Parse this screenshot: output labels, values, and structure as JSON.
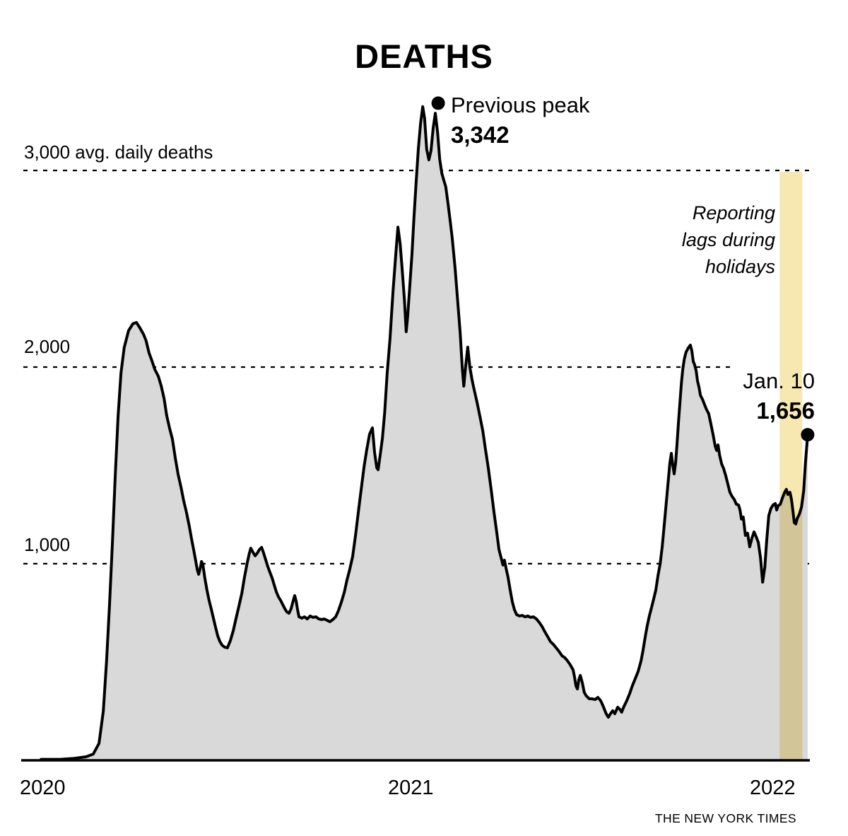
{
  "title": "DEATHS",
  "credit": "THE NEW YORK TIMES",
  "annotations": {
    "peak_label": "Previous peak",
    "peak_value": "3,342",
    "holiday_note_lines": [
      "Reporting",
      "lags during",
      "holidays"
    ],
    "latest_label": "Jan. 10",
    "latest_value": "1,656"
  },
  "axis_y": {
    "labels": [
      {
        "value": 3000,
        "text": "3,000 avg. daily deaths"
      },
      {
        "value": 2000,
        "text": "2,000"
      },
      {
        "value": 1000,
        "text": "1,000"
      }
    ]
  },
  "axis_x": {
    "ticks": [
      {
        "t": 0,
        "text": "2020"
      },
      {
        "t": 1,
        "text": "2021"
      },
      {
        "t": 2,
        "text": "2022"
      }
    ]
  },
  "colors": {
    "area_fill": "#d9d9d9",
    "line": "#000000",
    "grid": "#000000",
    "holiday_band": "#f7e8b2",
    "background": "#ffffff"
  },
  "chart_data": {
    "type": "area",
    "title": "DEATHS",
    "ylabel": "avg. daily deaths",
    "ylim": [
      0,
      3450
    ],
    "x_domain_years": [
      2019.96,
      2022.1
    ],
    "grid": "horizontal dashed at 1000, 2000, 3000",
    "legend": "none",
    "y_gridlines": [
      1000,
      2000,
      3000
    ],
    "highlight_band": {
      "t_start": 2.018,
      "t_end": 2.081,
      "note": "Reporting lags during holidays"
    },
    "markers": [
      {
        "t": 1.069,
        "value": 3342,
        "label": "Previous peak 3,342"
      },
      {
        "t": 2.096,
        "value": 1656,
        "label": "Jan. 10 1,656"
      }
    ],
    "series_units": "t = years since Jan 2020 (approx), v = 7-day avg daily deaths",
    "series": [
      [
        -0.035,
        5
      ],
      [
        0.018,
        5
      ],
      [
        0.057,
        10
      ],
      [
        0.09,
        18
      ],
      [
        0.11,
        32
      ],
      [
        0.126,
        86
      ],
      [
        0.138,
        250
      ],
      [
        0.147,
        505
      ],
      [
        0.155,
        785
      ],
      [
        0.163,
        1100
      ],
      [
        0.171,
        1440
      ],
      [
        0.179,
        1750
      ],
      [
        0.187,
        1970
      ],
      [
        0.196,
        2100
      ],
      [
        0.208,
        2185
      ],
      [
        0.22,
        2220
      ],
      [
        0.23,
        2227
      ],
      [
        0.24,
        2198
      ],
      [
        0.25,
        2165
      ],
      [
        0.257,
        2133
      ],
      [
        0.265,
        2072
      ],
      [
        0.273,
        2032
      ],
      [
        0.281,
        1989
      ],
      [
        0.291,
        1953
      ],
      [
        0.299,
        1903
      ],
      [
        0.307,
        1838
      ],
      [
        0.314,
        1755
      ],
      [
        0.322,
        1690
      ],
      [
        0.33,
        1633
      ],
      [
        0.338,
        1539
      ],
      [
        0.346,
        1453
      ],
      [
        0.354,
        1388
      ],
      [
        0.361,
        1324
      ],
      [
        0.369,
        1262
      ],
      [
        0.377,
        1190
      ],
      [
        0.383,
        1129
      ],
      [
        0.389,
        1072
      ],
      [
        0.395,
        1011
      ],
      [
        0.399,
        971
      ],
      [
        0.403,
        946
      ],
      [
        0.407,
        975
      ],
      [
        0.411,
        1011
      ],
      [
        0.415,
        993
      ],
      [
        0.42,
        928
      ],
      [
        0.426,
        867
      ],
      [
        0.432,
        813
      ],
      [
        0.438,
        770
      ],
      [
        0.444,
        723
      ],
      [
        0.45,
        676
      ],
      [
        0.456,
        633
      ],
      [
        0.462,
        604
      ],
      [
        0.468,
        586
      ],
      [
        0.475,
        576
      ],
      [
        0.483,
        572
      ],
      [
        0.491,
        608
      ],
      [
        0.499,
        658
      ],
      [
        0.507,
        723
      ],
      [
        0.515,
        784
      ],
      [
        0.523,
        849
      ],
      [
        0.53,
        928
      ],
      [
        0.538,
        1004
      ],
      [
        0.544,
        1054
      ],
      [
        0.548,
        1079
      ],
      [
        0.554,
        1058
      ],
      [
        0.56,
        1040
      ],
      [
        0.566,
        1054
      ],
      [
        0.572,
        1072
      ],
      [
        0.578,
        1083
      ],
      [
        0.583,
        1058
      ],
      [
        0.589,
        1022
      ],
      [
        0.595,
        986
      ],
      [
        0.601,
        957
      ],
      [
        0.607,
        928
      ],
      [
        0.613,
        892
      ],
      [
        0.619,
        856
      ],
      [
        0.625,
        831
      ],
      [
        0.631,
        813
      ],
      [
        0.637,
        791
      ],
      [
        0.642,
        773
      ],
      [
        0.648,
        755
      ],
      [
        0.654,
        748
      ],
      [
        0.66,
        770
      ],
      [
        0.666,
        813
      ],
      [
        0.67,
        838
      ],
      [
        0.674,
        809
      ],
      [
        0.678,
        766
      ],
      [
        0.682,
        730
      ],
      [
        0.69,
        723
      ],
      [
        0.697,
        730
      ],
      [
        0.705,
        719
      ],
      [
        0.713,
        734
      ],
      [
        0.721,
        727
      ],
      [
        0.729,
        730
      ],
      [
        0.737,
        719
      ],
      [
        0.745,
        716
      ],
      [
        0.752,
        719
      ],
      [
        0.76,
        712
      ],
      [
        0.768,
        705
      ],
      [
        0.776,
        716
      ],
      [
        0.784,
        730
      ],
      [
        0.792,
        763
      ],
      [
        0.8,
        806
      ],
      [
        0.808,
        856
      ],
      [
        0.815,
        914
      ],
      [
        0.823,
        971
      ],
      [
        0.831,
        1036
      ],
      [
        0.839,
        1144
      ],
      [
        0.847,
        1263
      ],
      [
        0.855,
        1381
      ],
      [
        0.863,
        1496
      ],
      [
        0.87,
        1576
      ],
      [
        0.878,
        1658
      ],
      [
        0.886,
        1691
      ],
      [
        0.892,
        1568
      ],
      [
        0.898,
        1489
      ],
      [
        0.902,
        1478
      ],
      [
        0.908,
        1558
      ],
      [
        0.914,
        1640
      ],
      [
        0.92,
        1766
      ],
      [
        0.927,
        1964
      ],
      [
        0.935,
        2144
      ],
      [
        0.943,
        2377
      ],
      [
        0.951,
        2575
      ],
      [
        0.957,
        2712
      ],
      [
        0.963,
        2629
      ],
      [
        0.969,
        2493
      ],
      [
        0.975,
        2342
      ],
      [
        0.98,
        2180
      ],
      [
        0.984,
        2259
      ],
      [
        0.99,
        2413
      ],
      [
        0.996,
        2575
      ],
      [
        1.002,
        2773
      ],
      [
        1.008,
        2953
      ],
      [
        1.014,
        3115
      ],
      [
        1.02,
        3241
      ],
      [
        1.026,
        3324
      ],
      [
        1.031,
        3266
      ],
      [
        1.037,
        3108
      ],
      [
        1.043,
        3054
      ],
      [
        1.049,
        3101
      ],
      [
        1.055,
        3216
      ],
      [
        1.061,
        3291
      ],
      [
        1.067,
        3198
      ],
      [
        1.073,
        3058
      ],
      [
        1.079,
        2986
      ],
      [
        1.084,
        2953
      ],
      [
        1.09,
        2917
      ],
      [
        1.096,
        2834
      ],
      [
        1.102,
        2748
      ],
      [
        1.108,
        2654
      ],
      [
        1.116,
        2503
      ],
      [
        1.124,
        2316
      ],
      [
        1.13,
        2173
      ],
      [
        1.136,
        1993
      ],
      [
        1.14,
        1903
      ],
      [
        1.145,
        2000
      ],
      [
        1.151,
        2101
      ],
      [
        1.157,
        2000
      ],
      [
        1.163,
        1935
      ],
      [
        1.169,
        1885
      ],
      [
        1.177,
        1820
      ],
      [
        1.185,
        1748
      ],
      [
        1.193,
        1676
      ],
      [
        1.2,
        1586
      ],
      [
        1.208,
        1489
      ],
      [
        1.216,
        1381
      ],
      [
        1.224,
        1263
      ],
      [
        1.232,
        1155
      ],
      [
        1.238,
        1072
      ],
      [
        1.244,
        1029
      ],
      [
        1.249,
        993
      ],
      [
        1.253,
        1018
      ],
      [
        1.257,
        982
      ],
      [
        1.263,
        932
      ],
      [
        1.269,
        867
      ],
      [
        1.275,
        806
      ],
      [
        1.281,
        766
      ],
      [
        1.287,
        741
      ],
      [
        1.295,
        734
      ],
      [
        1.303,
        737
      ],
      [
        1.31,
        730
      ],
      [
        1.318,
        734
      ],
      [
        1.326,
        727
      ],
      [
        1.334,
        730
      ],
      [
        1.342,
        719
      ],
      [
        1.35,
        701
      ],
      [
        1.358,
        680
      ],
      [
        1.365,
        655
      ],
      [
        1.373,
        630
      ],
      [
        1.381,
        604
      ],
      [
        1.389,
        590
      ],
      [
        1.397,
        572
      ],
      [
        1.405,
        554
      ],
      [
        1.413,
        532
      ],
      [
        1.421,
        522
      ],
      [
        1.428,
        507
      ],
      [
        1.436,
        486
      ],
      [
        1.444,
        460
      ],
      [
        1.448,
        424
      ],
      [
        1.452,
        378
      ],
      [
        1.456,
        363
      ],
      [
        1.46,
        410
      ],
      [
        1.464,
        432
      ],
      [
        1.47,
        392
      ],
      [
        1.475,
        345
      ],
      [
        1.481,
        327
      ],
      [
        1.489,
        313
      ],
      [
        1.497,
        313
      ],
      [
        1.505,
        309
      ],
      [
        1.513,
        320
      ],
      [
        1.521,
        302
      ],
      [
        1.528,
        273
      ],
      [
        1.536,
        237
      ],
      [
        1.542,
        219
      ],
      [
        1.548,
        237
      ],
      [
        1.554,
        252
      ],
      [
        1.56,
        237
      ],
      [
        1.568,
        270
      ],
      [
        1.574,
        259
      ],
      [
        1.579,
        245
      ],
      [
        1.585,
        273
      ],
      [
        1.593,
        302
      ],
      [
        1.601,
        338
      ],
      [
        1.609,
        381
      ],
      [
        1.617,
        417
      ],
      [
        1.625,
        453
      ],
      [
        1.633,
        507
      ],
      [
        1.638,
        554
      ],
      [
        1.644,
        622
      ],
      [
        1.65,
        683
      ],
      [
        1.656,
        734
      ],
      [
        1.662,
        777
      ],
      [
        1.668,
        820
      ],
      [
        1.674,
        867
      ],
      [
        1.68,
        939
      ],
      [
        1.686,
        1000
      ],
      [
        1.692,
        1090
      ],
      [
        1.697,
        1190
      ],
      [
        1.703,
        1309
      ],
      [
        1.709,
        1432
      ],
      [
        1.713,
        1511
      ],
      [
        1.717,
        1561
      ],
      [
        1.721,
        1503
      ],
      [
        1.725,
        1457
      ],
      [
        1.729,
        1514
      ],
      [
        1.733,
        1611
      ],
      [
        1.737,
        1719
      ],
      [
        1.741,
        1820
      ],
      [
        1.745,
        1917
      ],
      [
        1.749,
        1989
      ],
      [
        1.753,
        2040
      ],
      [
        1.758,
        2076
      ],
      [
        1.764,
        2097
      ],
      [
        1.77,
        2112
      ],
      [
        1.774,
        2083
      ],
      [
        1.778,
        2029
      ],
      [
        1.782,
        2011
      ],
      [
        1.786,
        1982
      ],
      [
        1.79,
        1928
      ],
      [
        1.794,
        1899
      ],
      [
        1.798,
        1856
      ],
      [
        1.804,
        1835
      ],
      [
        1.81,
        1806
      ],
      [
        1.815,
        1784
      ],
      [
        1.821,
        1763
      ],
      [
        1.827,
        1712
      ],
      [
        1.833,
        1658
      ],
      [
        1.839,
        1597
      ],
      [
        1.843,
        1576
      ],
      [
        1.847,
        1604
      ],
      [
        1.851,
        1554
      ],
      [
        1.857,
        1507
      ],
      [
        1.862,
        1486
      ],
      [
        1.868,
        1450
      ],
      [
        1.874,
        1406
      ],
      [
        1.88,
        1363
      ],
      [
        1.886,
        1342
      ],
      [
        1.892,
        1327
      ],
      [
        1.898,
        1302
      ],
      [
        1.904,
        1299
      ],
      [
        1.908,
        1273
      ],
      [
        1.912,
        1227
      ],
      [
        1.917,
        1237
      ],
      [
        1.923,
        1144
      ],
      [
        1.929,
        1155
      ],
      [
        1.935,
        1086
      ],
      [
        1.941,
        1129
      ],
      [
        1.947,
        1162
      ],
      [
        1.953,
        1137
      ],
      [
        1.959,
        1108
      ],
      [
        1.965,
        1029
      ],
      [
        1.971,
        906
      ],
      [
        1.977,
        982
      ],
      [
        1.982,
        1111
      ],
      [
        1.988,
        1245
      ],
      [
        1.994,
        1281
      ],
      [
        2.0,
        1299
      ],
      [
        2.006,
        1306
      ],
      [
        2.01,
        1273
      ],
      [
        2.014,
        1295
      ],
      [
        2.02,
        1302
      ],
      [
        2.026,
        1334
      ],
      [
        2.032,
        1363
      ],
      [
        2.037,
        1378
      ],
      [
        2.041,
        1352
      ],
      [
        2.047,
        1363
      ],
      [
        2.051,
        1327
      ],
      [
        2.055,
        1270
      ],
      [
        2.059,
        1209
      ],
      [
        2.063,
        1202
      ],
      [
        2.067,
        1230
      ],
      [
        2.073,
        1252
      ],
      [
        2.079,
        1288
      ],
      [
        2.085,
        1371
      ],
      [
        2.09,
        1514
      ],
      [
        2.094,
        1604
      ],
      [
        2.096,
        1656
      ]
    ]
  }
}
